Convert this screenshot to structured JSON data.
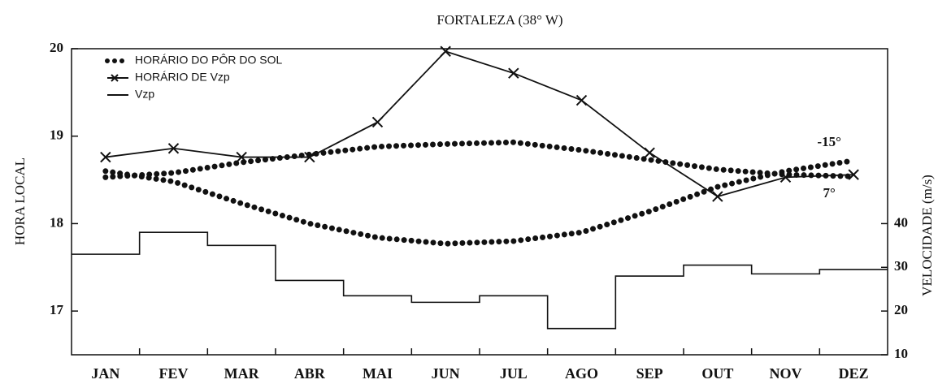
{
  "chart_data": {
    "type": "line",
    "title": "FORTALEZA (38° W)",
    "y_label": "HORA LOCAL",
    "y2_label": "VELOCIDADE (m/s)",
    "categories": [
      "JAN",
      "FEV",
      "MAR",
      "ABR",
      "MAI",
      "JUN",
      "JUL",
      "AGO",
      "SEP",
      "OUT",
      "NOV",
      "DEZ"
    ],
    "ylim": [
      16.5,
      20
    ],
    "yticks": [
      17,
      18,
      19,
      20
    ],
    "y2lim": [
      10,
      80
    ],
    "y2ticks": [
      10,
      20,
      30,
      40
    ],
    "legend": "top-left",
    "series": [
      {
        "name": "HORÁRIO DO PÔR DO SOL",
        "color": "#111111",
        "style": "dotted",
        "curves": [
          {
            "label": "-15°",
            "values": [
              18.6,
              18.48,
              18.23,
              18.0,
              17.84,
              17.77,
              17.8,
              17.9,
              18.14,
              18.42,
              18.6,
              18.72
            ]
          },
          {
            "label": "7°",
            "values": [
              18.53,
              18.58,
              18.7,
              18.79,
              18.88,
              18.91,
              18.93,
              18.84,
              18.73,
              18.62,
              18.56,
              18.54
            ]
          }
        ]
      },
      {
        "name": "HORÁRIO DE Vzp",
        "color": "#111111",
        "style": "line-x",
        "values": [
          18.76,
          18.86,
          18.76,
          18.76,
          19.16,
          19.97,
          19.72,
          19.41,
          18.81,
          18.31,
          18.53,
          18.56
        ]
      },
      {
        "name": "Vzp",
        "color": "#111111",
        "style": "step",
        "axis": "y2",
        "values": [
          33,
          38,
          35,
          27,
          23.5,
          22,
          23.5,
          16,
          28,
          30.5,
          28.5,
          29.5
        ]
      }
    ]
  }
}
